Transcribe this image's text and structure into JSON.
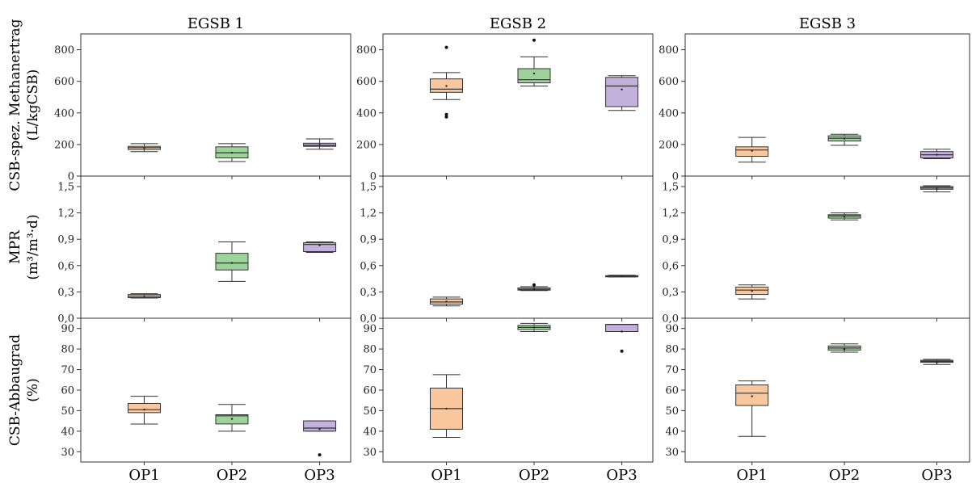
{
  "colors": {
    "OP1": "#f9c79d",
    "OP2": "#9dd39b",
    "OP3": "#c3b0db",
    "frame": "#333333"
  },
  "chart_data": {
    "type": "box",
    "panels": [
      "EGSB 1",
      "EGSB 2",
      "EGSB 3"
    ],
    "categories": [
      "OP1",
      "OP2",
      "OP3"
    ],
    "rows": [
      {
        "key": "csb",
        "ylabel_lines": [
          "CSB-spez. Methanertrag",
          "(L/kgCSB)"
        ],
        "ylim": [
          0,
          900
        ],
        "ticks": [
          0,
          200,
          400,
          600,
          800
        ],
        "tick_labels": [
          "0",
          "200",
          "400",
          "600",
          "800"
        ],
        "data": [
          [
            {
              "cat": "OP1",
              "min": 155,
              "q1": 168,
              "median": 180,
              "q3": 188,
              "max": 205,
              "mean": 178,
              "outliers": []
            },
            {
              "cat": "OP2",
              "min": 92,
              "q1": 115,
              "median": 148,
              "q3": 185,
              "max": 205,
              "mean": 148,
              "outliers": []
            },
            {
              "cat": "OP3",
              "min": 170,
              "q1": 188,
              "median": 195,
              "q3": 208,
              "max": 235,
              "mean": 198,
              "outliers": []
            }
          ],
          [
            {
              "cat": "OP1",
              "min": 485,
              "q1": 530,
              "median": 550,
              "q3": 615,
              "max": 655,
              "mean": 570,
              "outliers": [
                815,
                390,
                375
              ]
            },
            {
              "cat": "OP2",
              "min": 570,
              "q1": 590,
              "median": 610,
              "q3": 680,
              "max": 755,
              "mean": 650,
              "outliers": [
                860
              ]
            },
            {
              "cat": "OP3",
              "min": 415,
              "q1": 440,
              "median": 570,
              "q3": 625,
              "max": 635,
              "mean": 548,
              "outliers": []
            }
          ],
          [
            {
              "cat": "OP1",
              "min": 88,
              "q1": 125,
              "median": 165,
              "q3": 185,
              "max": 245,
              "mean": 160,
              "outliers": []
            },
            {
              "cat": "OP2",
              "min": 195,
              "q1": 222,
              "median": 240,
              "q3": 255,
              "max": 265,
              "mean": 238,
              "outliers": []
            },
            {
              "cat": "OP3",
              "min": 110,
              "q1": 115,
              "median": 135,
              "q3": 155,
              "max": 170,
              "mean": 135,
              "outliers": []
            }
          ]
        ]
      },
      {
        "key": "mpr",
        "ylabel_lines": [
          "MPR",
          "(m³/m³·d)"
        ],
        "ylim": [
          0,
          1.62
        ],
        "ticks": [
          0,
          0.3,
          0.6,
          0.9,
          1.2,
          1.5
        ],
        "tick_labels": [
          "0,0",
          "0,3",
          "0,6",
          "0,9",
          "1,2",
          "1,5"
        ],
        "data": [
          [
            {
              "cat": "OP1",
              "min": 0.23,
              "q1": 0.235,
              "median": 0.25,
              "q3": 0.27,
              "max": 0.28,
              "mean": 0.25,
              "outliers": []
            },
            {
              "cat": "OP2",
              "min": 0.42,
              "q1": 0.55,
              "median": 0.63,
              "q3": 0.74,
              "max": 0.87,
              "mean": 0.63,
              "outliers": []
            },
            {
              "cat": "OP3",
              "min": 0.75,
              "q1": 0.76,
              "median": 0.84,
              "q3": 0.86,
              "max": 0.87,
              "mean": 0.83,
              "outliers": []
            }
          ],
          [
            {
              "cat": "OP1",
              "min": 0.14,
              "q1": 0.16,
              "median": 0.185,
              "q3": 0.22,
              "max": 0.24,
              "mean": 0.19,
              "outliers": []
            },
            {
              "cat": "OP2",
              "min": 0.315,
              "q1": 0.32,
              "median": 0.33,
              "q3": 0.345,
              "max": 0.36,
              "mean": 0.33,
              "outliers": [
                0.38
              ]
            },
            {
              "cat": "OP3",
              "min": 0.47,
              "q1": 0.475,
              "median": 0.48,
              "q3": 0.485,
              "max": 0.49,
              "mean": 0.48,
              "outliers": []
            }
          ],
          [
            {
              "cat": "OP1",
              "min": 0.22,
              "q1": 0.27,
              "median": 0.32,
              "q3": 0.355,
              "max": 0.38,
              "mean": 0.31,
              "outliers": []
            },
            {
              "cat": "OP2",
              "min": 1.12,
              "q1": 1.14,
              "median": 1.165,
              "q3": 1.18,
              "max": 1.2,
              "mean": 1.16,
              "outliers": []
            },
            {
              "cat": "OP3",
              "min": 1.44,
              "q1": 1.47,
              "median": 1.485,
              "q3": 1.5,
              "max": 1.51,
              "mean": 1.48,
              "outliers": []
            }
          ]
        ]
      },
      {
        "key": "abbau",
        "ylabel_lines": [
          "CSB-Abbaugrad",
          "(%)"
        ],
        "ylim": [
          25,
          95
        ],
        "ticks": [
          30,
          40,
          50,
          60,
          70,
          80,
          90
        ],
        "tick_labels": [
          "30",
          "40",
          "50",
          "60",
          "70",
          "80",
          "90"
        ],
        "data": [
          [
            {
              "cat": "OP1",
              "min": 43.5,
              "q1": 49,
              "median": 50.5,
              "q3": 53.5,
              "max": 57,
              "mean": 50.5,
              "outliers": []
            },
            {
              "cat": "OP2",
              "min": 40,
              "q1": 43.5,
              "median": 47.5,
              "q3": 48,
              "max": 53,
              "mean": 46,
              "outliers": []
            },
            {
              "cat": "OP3",
              "min": 40,
              "q1": 40,
              "median": 41.5,
              "q3": 45,
              "max": 45,
              "mean": 41,
              "outliers": [
                28.5
              ]
            }
          ],
          [
            {
              "cat": "OP1",
              "min": 37,
              "q1": 41,
              "median": 51,
              "q3": 61,
              "max": 67.5,
              "mean": 51,
              "outliers": []
            },
            {
              "cat": "OP2",
              "min": 88.5,
              "q1": 89.5,
              "median": 90.5,
              "q3": 91.5,
              "max": 92.5,
              "mean": 90.5,
              "outliers": []
            },
            {
              "cat": "OP3",
              "min": 88.5,
              "q1": 88.5,
              "median": 92,
              "q3": 92,
              "max": 92,
              "mean": 88.5,
              "outliers": [
                79
              ]
            }
          ],
          [
            {
              "cat": "OP1",
              "min": 37.5,
              "q1": 52.5,
              "median": 58.5,
              "q3": 62.5,
              "max": 64.5,
              "mean": 57,
              "outliers": []
            },
            {
              "cat": "OP2",
              "min": 78.5,
              "q1": 79.5,
              "median": 80.5,
              "q3": 81.5,
              "max": 82.5,
              "mean": 80,
              "outliers": []
            },
            {
              "cat": "OP3",
              "min": 72.5,
              "q1": 73.5,
              "median": 74,
              "q3": 74.5,
              "max": 75,
              "mean": 73.5,
              "outliers": []
            }
          ]
        ]
      }
    ]
  }
}
